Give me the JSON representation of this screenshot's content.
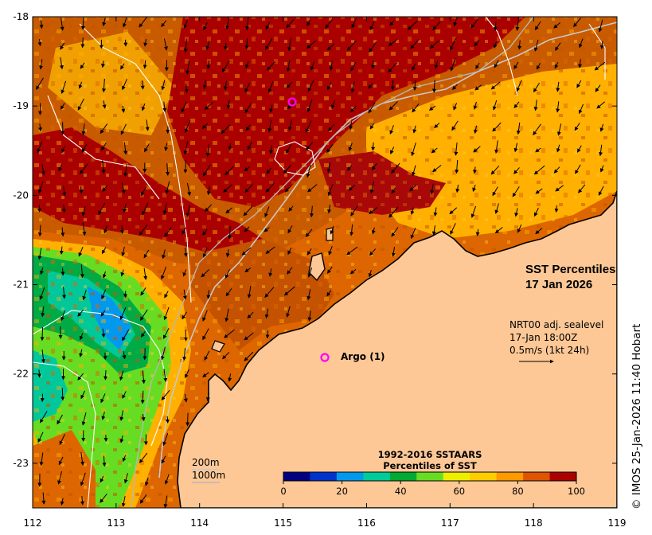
{
  "map": {
    "x_ticks": [
      "112",
      "113",
      "114",
      "115",
      "116",
      "117",
      "118",
      "119"
    ],
    "y_ticks": [
      "-18",
      "-19",
      "-20",
      "-21",
      "-22",
      "-23"
    ],
    "lon_range": [
      112,
      119
    ],
    "lat_range": [
      -23.5,
      -18
    ]
  },
  "title": {
    "line1": "SST Percentiles",
    "line2": "17 Jan 2026"
  },
  "currents": {
    "line1": "NRT00 adj. sealevel",
    "line2": "17-Jan 18:00Z",
    "line3": "0.5m/s (1kt 24h)"
  },
  "argo": {
    "label": "Argo (1)",
    "color": "#ff00ff"
  },
  "isobaths": {
    "shallow": "200m",
    "deep": "1000m"
  },
  "colorbar": {
    "title1": "1992-2016 SSTAARS",
    "title2": "Percentiles of SST",
    "labels": [
      "0",
      "20",
      "40",
      "60",
      "80",
      "100"
    ],
    "colors": [
      "#000080",
      "#0033cc",
      "#0099ee",
      "#00cc99",
      "#00aa33",
      "#66dd22",
      "#eeee00",
      "#ffcc00",
      "#ff9900",
      "#dd5500",
      "#aa0000"
    ]
  },
  "credit": "© IMOS 25-Jan-2026 11:40 Hobart",
  "palette": {
    "land": "#fdc896",
    "coast": "#000000",
    "isobath": "#cccccc",
    "contour": "#ffffff"
  }
}
